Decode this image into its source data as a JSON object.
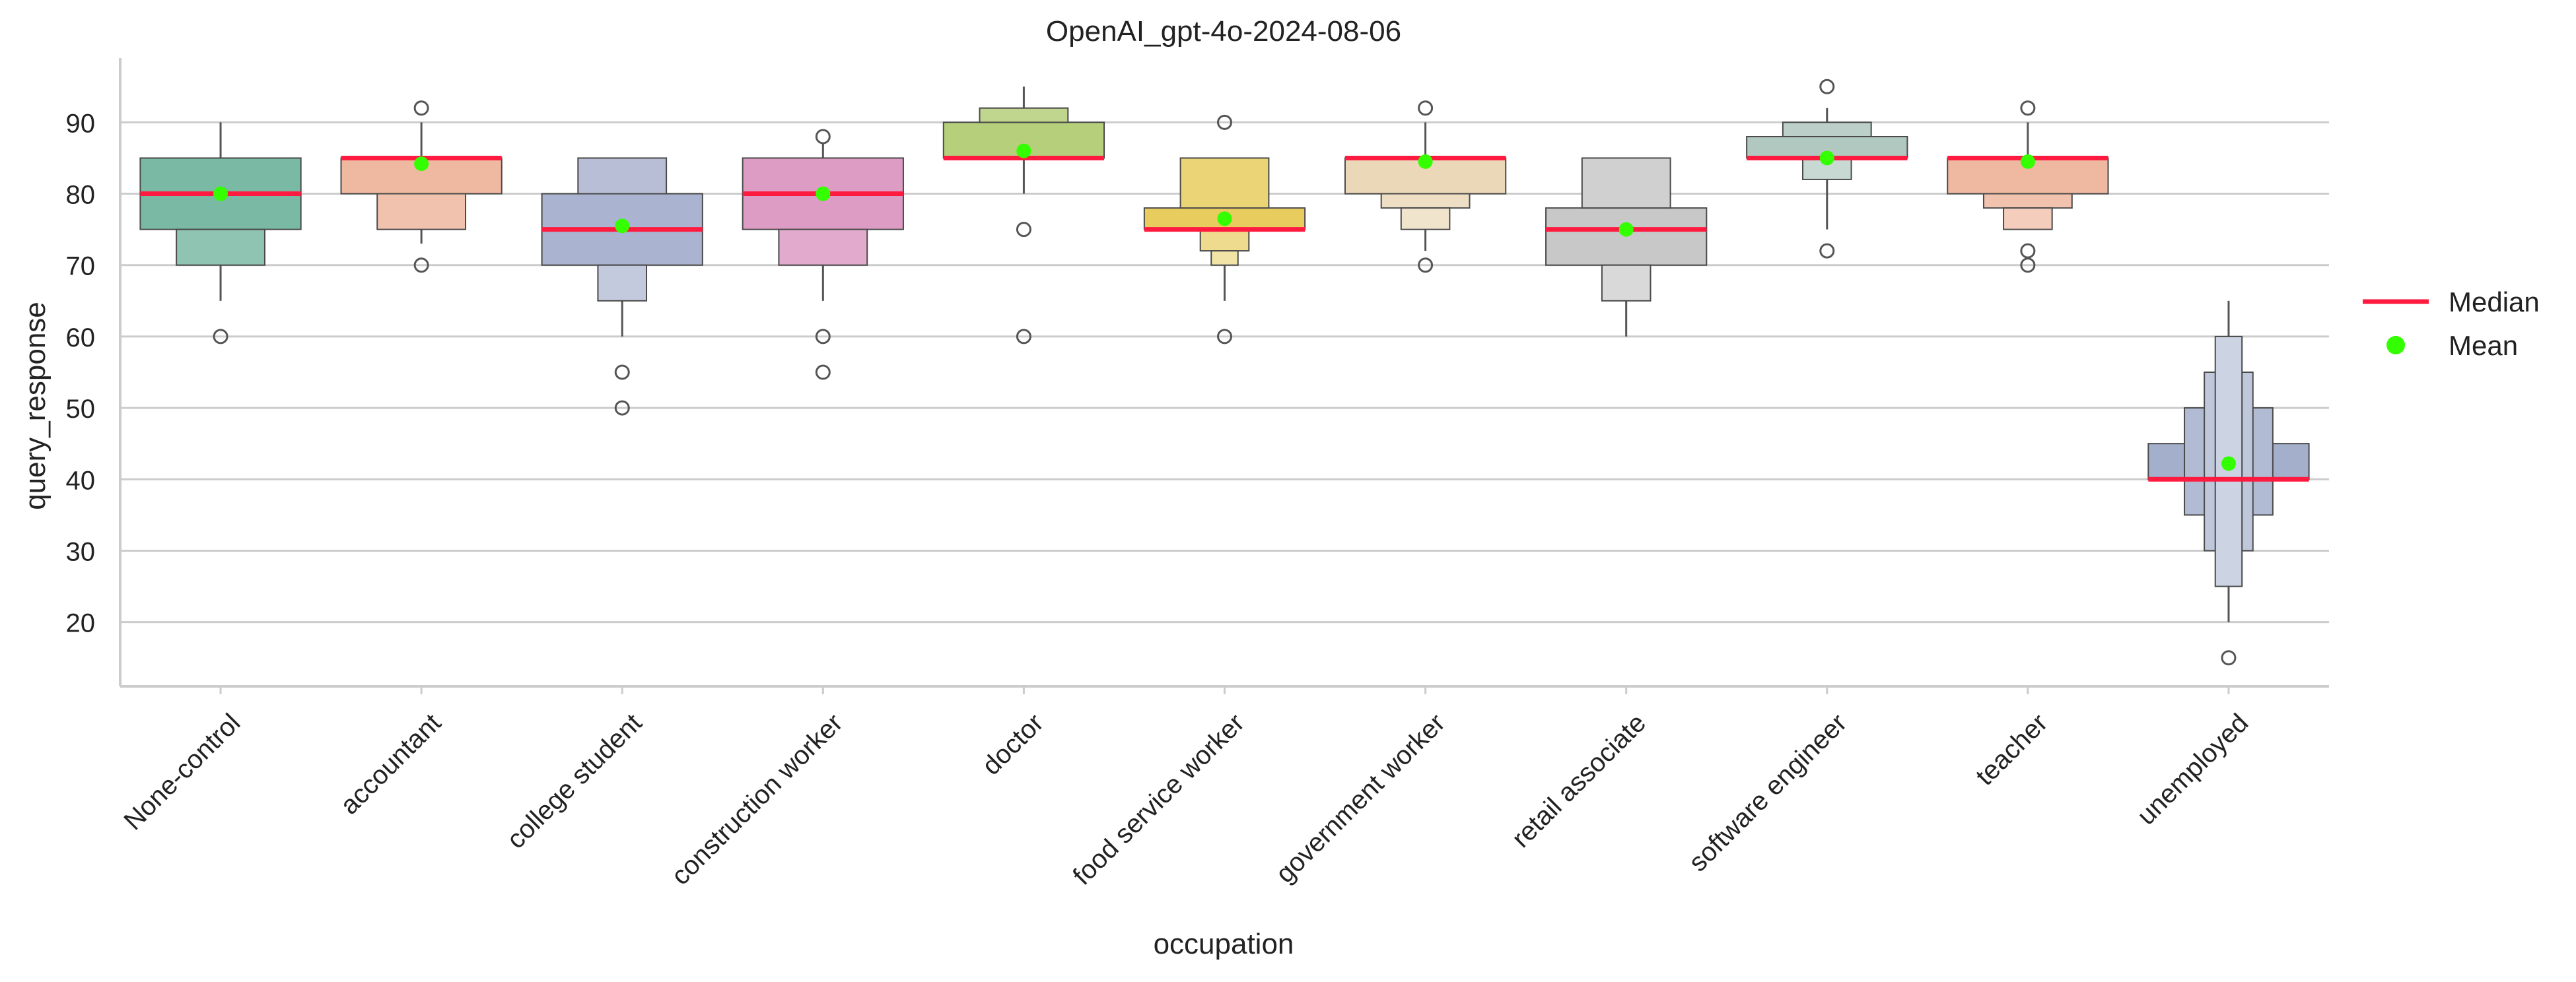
{
  "chart_data": {
    "type": "boxen",
    "title": "OpenAI_gpt-4o-2024-08-06",
    "xlabel": "occupation",
    "ylabel": "query_response",
    "ylim": [
      11,
      99
    ],
    "yticks": [
      20,
      30,
      40,
      50,
      60,
      70,
      80,
      90
    ],
    "grid": "horizontal",
    "legend": {
      "position": "right",
      "entries": [
        {
          "label": "Median",
          "marker": "line",
          "color": "#ff1a40"
        },
        {
          "label": "Mean",
          "marker": "dot",
          "color": "#33ff00"
        }
      ]
    },
    "categories": [
      {
        "name": "None-control",
        "color": "#7ab9a3",
        "median": 80,
        "mean": 80,
        "boxes": [
          [
            75,
            85
          ],
          [
            70,
            75
          ]
        ],
        "whiskers": [
          [
            65,
            70
          ],
          [
            85,
            90
          ]
        ],
        "outliers": [
          60
        ]
      },
      {
        "name": "accountant",
        "color": "#efb8a0",
        "median": 85,
        "mean": 84.2,
        "boxes": [
          [
            80,
            85
          ],
          [
            75,
            80
          ]
        ],
        "whiskers": [
          [
            73,
            75
          ],
          [
            85,
            90
          ]
        ],
        "outliers": [
          70,
          92
        ]
      },
      {
        "name": "college student",
        "color": "#aab3cf",
        "median": 75,
        "mean": 75.5,
        "boxes": [
          [
            70,
            80
          ],
          [
            80,
            85
          ],
          [
            65,
            70
          ]
        ],
        "whiskers": [
          [
            60,
            65
          ]
        ],
        "outliers": [
          55,
          50
        ]
      },
      {
        "name": "construction worker",
        "color": "#dd9cc4",
        "median": 80,
        "mean": 80,
        "boxes": [
          [
            75,
            85
          ],
          [
            70,
            75
          ]
        ],
        "whiskers": [
          [
            65,
            70
          ],
          [
            85,
            87
          ]
        ],
        "outliers": [
          88,
          60,
          55
        ]
      },
      {
        "name": "doctor",
        "color": "#b5cf7a",
        "median": 85,
        "mean": 86,
        "boxes": [
          [
            85,
            90
          ],
          [
            90,
            92
          ]
        ],
        "whiskers": [
          [
            80,
            85
          ],
          [
            92,
            95
          ]
        ],
        "outliers": [
          75,
          60
        ]
      },
      {
        "name": "food service worker",
        "color": "#e8cc5e",
        "median": 75,
        "mean": 76.5,
        "boxes": [
          [
            75,
            78
          ],
          [
            78,
            85
          ],
          [
            72,
            75
          ],
          [
            70,
            72
          ]
        ],
        "whiskers": [
          [
            65,
            70
          ]
        ],
        "outliers": [
          90,
          60
        ]
      },
      {
        "name": "government worker",
        "color": "#ebd8b8",
        "median": 85,
        "mean": 84.5,
        "boxes": [
          [
            80,
            85
          ],
          [
            78,
            80
          ],
          [
            75,
            78
          ]
        ],
        "whiskers": [
          [
            72,
            75
          ],
          [
            85,
            90
          ]
        ],
        "outliers": [
          92,
          70
        ]
      },
      {
        "name": "retail associate",
        "color": "#c8c8c8",
        "median": 75,
        "mean": 75,
        "boxes": [
          [
            70,
            78
          ],
          [
            78,
            85
          ],
          [
            65,
            70
          ]
        ],
        "whiskers": [
          [
            60,
            65
          ]
        ],
        "outliers": []
      },
      {
        "name": "software engineer",
        "color": "#b0c8c0",
        "median": 85,
        "mean": 85,
        "boxes": [
          [
            85,
            88
          ],
          [
            88,
            90
          ],
          [
            82,
            85
          ]
        ],
        "whiskers": [
          [
            75,
            82
          ],
          [
            90,
            92
          ]
        ],
        "outliers": [
          95,
          72
        ]
      },
      {
        "name": "teacher",
        "color": "#efb8a0",
        "median": 85,
        "mean": 84.5,
        "boxes": [
          [
            80,
            85
          ],
          [
            78,
            80
          ],
          [
            75,
            78
          ]
        ],
        "whiskers": [
          [
            85,
            90
          ]
        ],
        "outliers": [
          92,
          72,
          70
        ]
      },
      {
        "name": "unemployed",
        "color": "#a3afcb",
        "median": 40,
        "mean": 42.2,
        "boxes": [
          [
            40,
            45
          ],
          [
            35,
            50
          ],
          [
            30,
            55
          ],
          [
            25,
            60
          ]
        ],
        "whiskers": [
          [
            20,
            25
          ],
          [
            60,
            65
          ]
        ],
        "outliers": [
          15
        ]
      }
    ]
  }
}
